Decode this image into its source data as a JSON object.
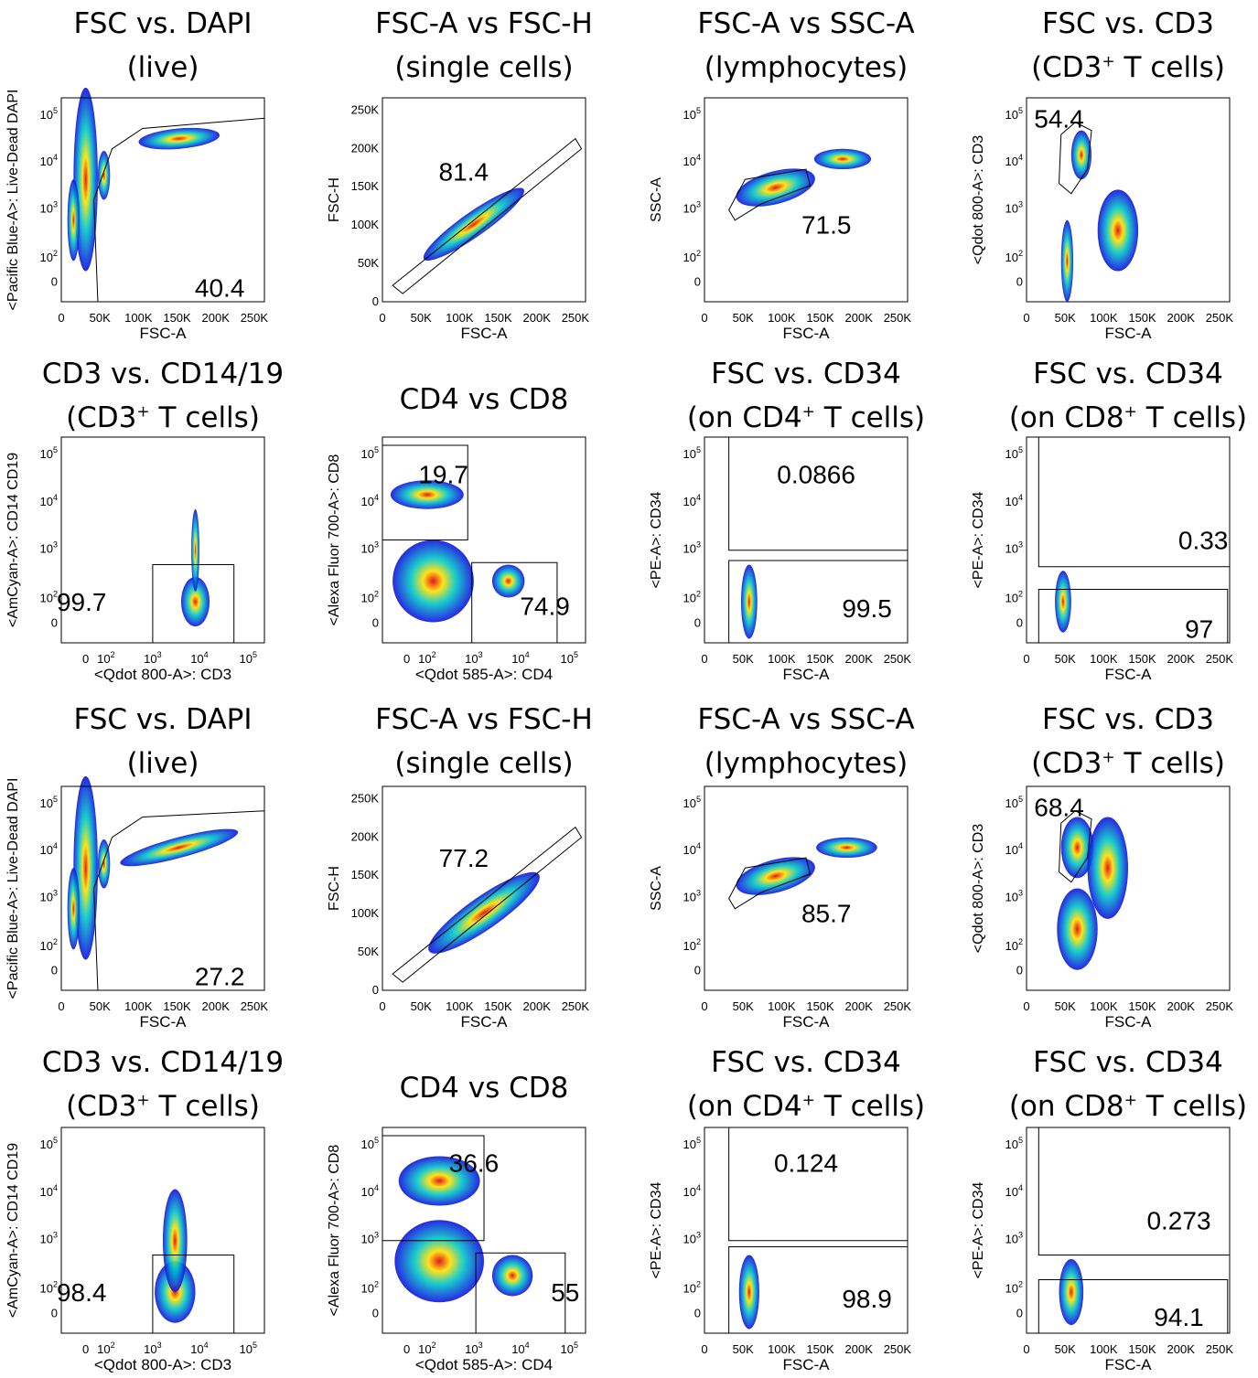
{
  "figure": {
    "rows": [
      [
        {
          "title_lines": [
            "FSC vs. DAPI",
            "(live)"
          ],
          "xlabel": "FSC-A",
          "ylabel": "<Pacific Blue-A>: Live-Dead DAPI",
          "xscale": "linear",
          "yscale": "log",
          "gate_labels": [
            "40.4"
          ]
        },
        {
          "title_lines": [
            "FSC-A vs FSC-H",
            "(single cells)"
          ],
          "xlabel": "FSC-A",
          "ylabel": "FSC-H",
          "xscale": "linear",
          "yscale": "linear",
          "gate_labels": [
            "81.4"
          ]
        },
        {
          "title_lines": [
            "FSC-A vs SSC-A",
            "(lymphocytes)"
          ],
          "xlabel": "FSC-A",
          "ylabel": "SSC-A",
          "xscale": "linear",
          "yscale": "log",
          "gate_labels": [
            "71.5"
          ]
        },
        {
          "title_lines": [
            "FSC vs. CD3",
            "(CD3^+ T cells)"
          ],
          "xlabel": "FSC-A",
          "ylabel": "<Qdot 800-A>: CD3",
          "xscale": "linear",
          "yscale": "log",
          "gate_labels": [
            "54.4"
          ]
        }
      ],
      [
        {
          "title_lines": [
            "CD3 vs. CD14/19",
            "(CD3^+ T cells)"
          ],
          "xlabel": "<Qdot 800-A>: CD3",
          "ylabel": "<AmCyan-A>: CD14 CD19",
          "xscale": "log",
          "yscale": "log",
          "gate_labels": [
            "99.7"
          ]
        },
        {
          "title_lines": [
            "CD4 vs CD8"
          ],
          "xlabel": "<Qdot 585-A>: CD4",
          "ylabel": "<Alexa Fluor 700-A>: CD8",
          "xscale": "log",
          "yscale": "log",
          "gate_labels": [
            "19.7",
            "74.9"
          ]
        },
        {
          "title_lines": [
            "FSC vs. CD34",
            "(on CD4^+ T cells)"
          ],
          "xlabel": "FSC-A",
          "ylabel": "<PE-A>: CD34",
          "xscale": "linear",
          "yscale": "log",
          "gate_labels": [
            "0.0866",
            "99.5"
          ]
        },
        {
          "title_lines": [
            "FSC vs. CD34",
            "(on CD8^+ T cells)"
          ],
          "xlabel": "FSC-A",
          "ylabel": "<PE-A>: CD34",
          "xscale": "linear",
          "yscale": "log",
          "gate_labels": [
            "0.33",
            "97"
          ]
        }
      ],
      [
        {
          "title_lines": [
            "FSC vs. DAPI",
            "(live)"
          ],
          "xlabel": "FSC-A",
          "ylabel": "<Pacific Blue-A>: Live-Dead DAPI",
          "xscale": "linear",
          "yscale": "log",
          "gate_labels": [
            "27.2"
          ]
        },
        {
          "title_lines": [
            "FSC-A vs FSC-H",
            "(single cells)"
          ],
          "xlabel": "FSC-A",
          "ylabel": "FSC-H",
          "xscale": "linear",
          "yscale": "linear",
          "gate_labels": [
            "77.2"
          ]
        },
        {
          "title_lines": [
            "FSC-A vs SSC-A",
            "(lymphocytes)"
          ],
          "xlabel": "FSC-A",
          "ylabel": "SSC-A",
          "xscale": "linear",
          "yscale": "log",
          "gate_labels": [
            "85.7"
          ]
        },
        {
          "title_lines": [
            "FSC vs. CD3",
            "(CD3^+ T cells)"
          ],
          "xlabel": "FSC-A",
          "ylabel": "<Qdot 800-A>: CD3",
          "xscale": "linear",
          "yscale": "log",
          "gate_labels": [
            "68.4"
          ]
        }
      ],
      [
        {
          "title_lines": [
            "CD3 vs. CD14/19",
            "(CD3^+ T cells)"
          ],
          "xlabel": "<Qdot 800-A>: CD3",
          "ylabel": "<AmCyan-A>: CD14 CD19",
          "xscale": "log",
          "yscale": "log",
          "gate_labels": [
            "98.4"
          ]
        },
        {
          "title_lines": [
            "CD4 vs CD8"
          ],
          "xlabel": "<Qdot 585-A>: CD4",
          "ylabel": "<Alexa Fluor 700-A>: CD8",
          "xscale": "log",
          "yscale": "log",
          "gate_labels": [
            "36.6",
            "55"
          ]
        },
        {
          "title_lines": [
            "FSC vs. CD34",
            "(on CD4^+ T cells)"
          ],
          "xlabel": "FSC-A",
          "ylabel": "<PE-A>: CD34",
          "xscale": "linear",
          "yscale": "log",
          "gate_labels": [
            "0.124",
            "98.9"
          ]
        },
        {
          "title_lines": [
            "FSC vs. CD34",
            "(on CD8^+ T cells)"
          ],
          "xlabel": "FSC-A",
          "ylabel": "<PE-A>: CD34",
          "xscale": "linear",
          "yscale": "log",
          "gate_labels": [
            "0.273",
            "94.1"
          ]
        }
      ]
    ],
    "ticks": {
      "fsc_linear": [
        "0",
        "50K",
        "100K",
        "150K",
        "200K",
        "250K"
      ],
      "log_axis": [
        "0",
        "10^2",
        "10^3",
        "10^4",
        "10^5"
      ]
    },
    "colors": {
      "density_low": "#1010e0",
      "density_mid": "#00c8c8",
      "density_high": "#ffe000",
      "density_peak": "#e00000"
    }
  },
  "chart_data": {
    "type": "scatter",
    "description_of_values": "flow cytometry gating percentages printed in each panel",
    "panels": [
      {
        "panel": 1,
        "gates": [
          40.4
        ]
      },
      {
        "panel": 2,
        "gates": [
          81.4
        ]
      },
      {
        "panel": 3,
        "gates": [
          71.5
        ]
      },
      {
        "panel": 4,
        "gates": [
          54.4
        ]
      },
      {
        "panel": 5,
        "gates": [
          99.7
        ]
      },
      {
        "panel": 6,
        "gates": [
          19.7,
          74.9
        ]
      },
      {
        "panel": 7,
        "gates": [
          0.0866,
          99.5
        ]
      },
      {
        "panel": 8,
        "gates": [
          0.33,
          97
        ]
      },
      {
        "panel": 9,
        "gates": [
          27.2
        ]
      },
      {
        "panel": 10,
        "gates": [
          77.2
        ]
      },
      {
        "panel": 11,
        "gates": [
          85.7
        ]
      },
      {
        "panel": 12,
        "gates": [
          68.4
        ]
      },
      {
        "panel": 13,
        "gates": [
          98.4
        ]
      },
      {
        "panel": 14,
        "gates": [
          36.6,
          55
        ]
      },
      {
        "panel": 15,
        "gates": [
          0.124,
          98.9
        ]
      },
      {
        "panel": 16,
        "gates": [
          0.273,
          94.1
        ]
      }
    ]
  }
}
